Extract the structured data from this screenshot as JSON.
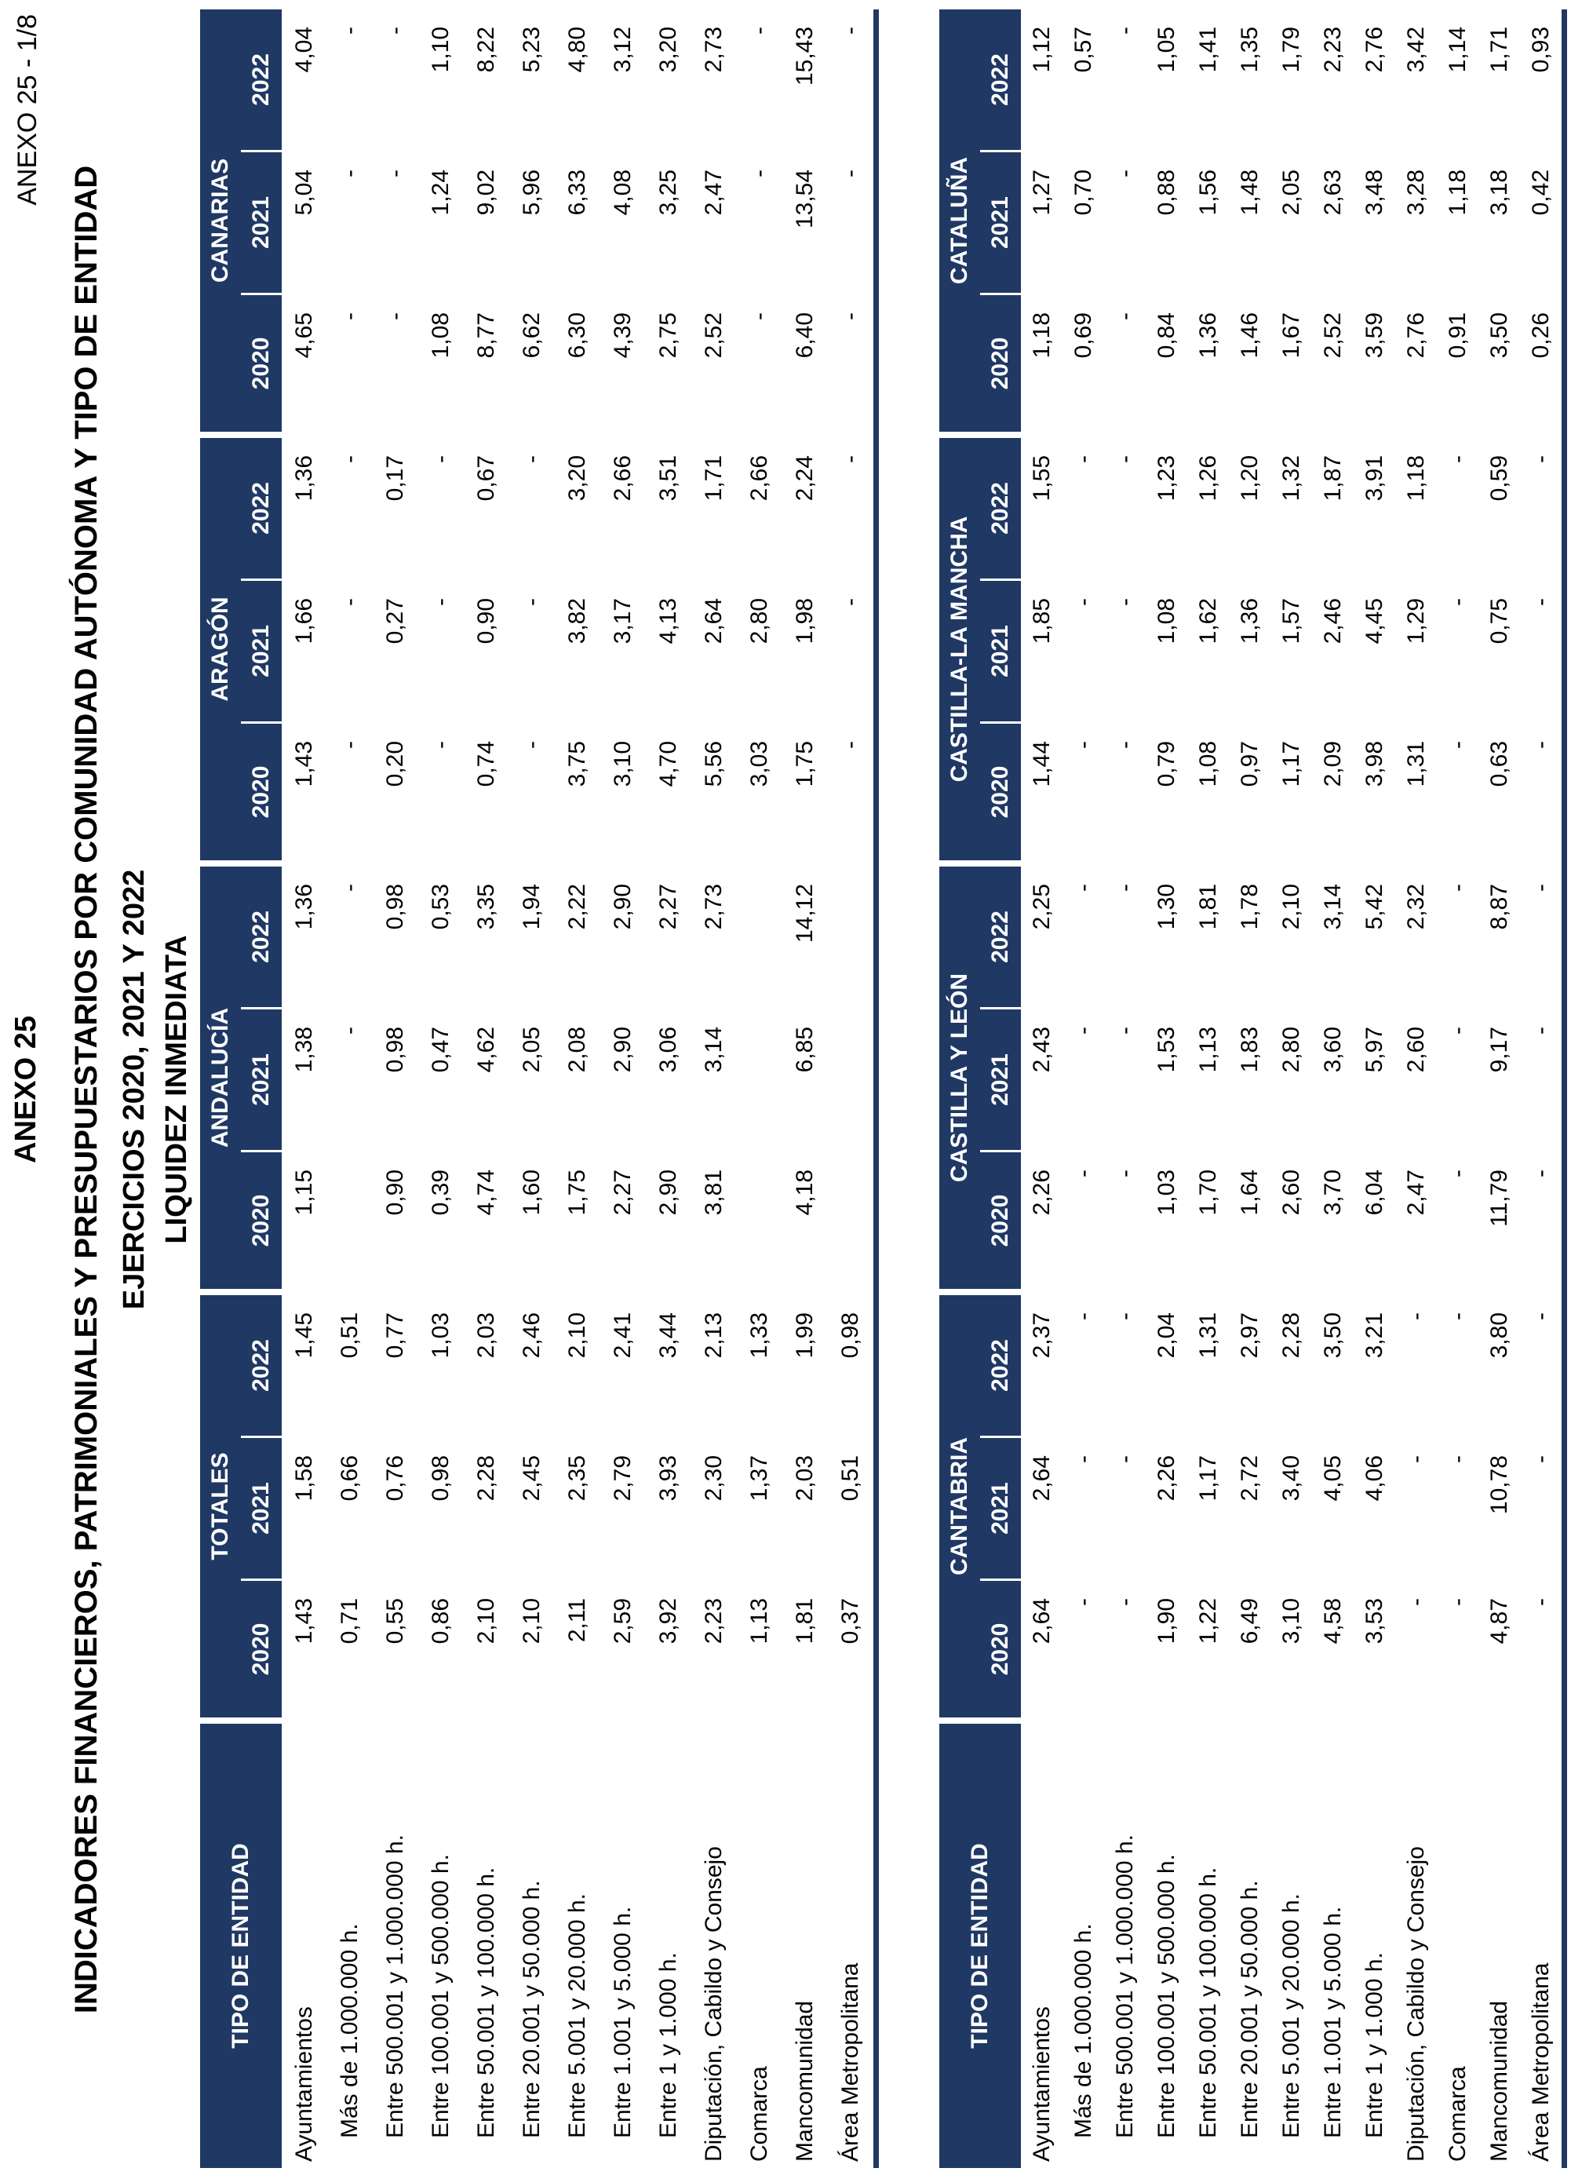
{
  "page": {
    "heading": "ANEXO 25",
    "page_marker": "ANEXO 25 - 1/8",
    "title": "INDICADORES FINANCIEROS, PATRIMONIALES Y PRESUPUESTARIOS POR COMUNIDAD AUTÓNOMA Y TIPO DE ENTIDAD",
    "subtitle": "EJERCICIOS 2020, 2021 Y 2022",
    "indicator": "LIQUIDEZ INMEDIATA"
  },
  "colors": {
    "header_navy": "#1F3864",
    "header_text": "#FFFFFF",
    "body_text": "#000000"
  },
  "table_layout": {
    "entity_header": "TIPO DE ENTIDAD",
    "years": [
      "2020",
      "2021",
      "2022"
    ]
  },
  "entities": [
    {
      "label": "Ayuntamientos",
      "indent": false
    },
    {
      "label": "Más de 1.000.000 h.",
      "indent": true
    },
    {
      "label": "Entre 500.001 y 1.000.000 h.",
      "indent": true
    },
    {
      "label": "Entre 100.001 y 500.000 h.",
      "indent": true
    },
    {
      "label": "Entre 50.001 y 100.000 h.",
      "indent": true
    },
    {
      "label": "Entre 20.001 y 50.000 h.",
      "indent": true
    },
    {
      "label": "Entre 5.001 y 20.000 h.",
      "indent": true
    },
    {
      "label": "Entre 1.001 y 5.000 h.",
      "indent": true
    },
    {
      "label": "Entre 1 y 1.000 h.",
      "indent": true
    },
    {
      "label": "Diputación, Cabildo y Consejo",
      "indent": false
    },
    {
      "label": "Comarca",
      "indent": false
    },
    {
      "label": "Mancomunidad",
      "indent": false
    },
    {
      "label": "Área Metropolitana",
      "indent": false
    }
  ],
  "tables": [
    {
      "groups": [
        {
          "name": "TOTALES",
          "by_year": {
            "2020": [
              "1,43",
              "0,71",
              "0,55",
              "0,86",
              "2,10",
              "2,10",
              "2,11",
              "2,59",
              "3,92",
              "2,23",
              "1,13",
              "1,81",
              "0,37"
            ],
            "2021": [
              "1,58",
              "0,66",
              "0,76",
              "0,98",
              "2,28",
              "2,45",
              "2,35",
              "2,79",
              "3,93",
              "2,30",
              "1,37",
              "2,03",
              "0,51"
            ],
            "2022": [
              "1,45",
              "0,51",
              "0,77",
              "1,03",
              "2,03",
              "2,46",
              "2,10",
              "2,41",
              "3,44",
              "2,13",
              "1,33",
              "1,99",
              "0,98"
            ]
          }
        },
        {
          "name": "ANDALUCÍA",
          "by_year": {
            "2020": [
              "1,15",
              "",
              "0,90",
              "0,39",
              "4,74",
              "1,60",
              "1,75",
              "2,27",
              "2,90",
              "3,81",
              "",
              "4,18",
              ""
            ],
            "2021": [
              "1,38",
              "-",
              "0,98",
              "0,47",
              "4,62",
              "2,05",
              "2,08",
              "2,90",
              "3,06",
              "3,14",
              "",
              "6,85",
              ""
            ],
            "2022": [
              "1,36",
              "-",
              "0,98",
              "0,53",
              "3,35",
              "1,94",
              "2,22",
              "2,90",
              "2,27",
              "2,73",
              "",
              "14,12",
              ""
            ]
          }
        },
        {
          "name": "ARAGÓN",
          "by_year": {
            "2020": [
              "1,43",
              "-",
              "0,20",
              "-",
              "0,74",
              "-",
              "3,75",
              "3,10",
              "4,70",
              "5,56",
              "3,03",
              "1,75",
              "-"
            ],
            "2021": [
              "1,66",
              "-",
              "0,27",
              "-",
              "0,90",
              "-",
              "3,82",
              "3,17",
              "4,13",
              "2,64",
              "2,80",
              "1,98",
              "-"
            ],
            "2022": [
              "1,36",
              "-",
              "0,17",
              "-",
              "0,67",
              "-",
              "3,20",
              "2,66",
              "3,51",
              "1,71",
              "2,66",
              "2,24",
              "-"
            ]
          }
        },
        {
          "name": "CANARIAS",
          "by_year": {
            "2020": [
              "4,65",
              "-",
              "-",
              "1,08",
              "8,77",
              "6,62",
              "6,30",
              "4,39",
              "2,75",
              "2,52",
              "-",
              "6,40",
              "-"
            ],
            "2021": [
              "5,04",
              "-",
              "-",
              "1,24",
              "9,02",
              "5,96",
              "6,33",
              "4,08",
              "3,25",
              "2,47",
              "-",
              "13,54",
              "-"
            ],
            "2022": [
              "4,04",
              "-",
              "-",
              "1,10",
              "8,22",
              "5,23",
              "4,80",
              "3,12",
              "3,20",
              "2,73",
              "-",
              "15,43",
              "-"
            ]
          }
        }
      ]
    },
    {
      "groups": [
        {
          "name": "CANTABRIA",
          "by_year": {
            "2020": [
              "2,64",
              "-",
              "-",
              "1,90",
              "1,22",
              "6,49",
              "3,10",
              "4,58",
              "3,53",
              "-",
              "-",
              "4,87",
              "-"
            ],
            "2021": [
              "2,64",
              "-",
              "-",
              "2,26",
              "1,17",
              "2,72",
              "3,40",
              "4,05",
              "4,06",
              "-",
              "-",
              "10,78",
              "-"
            ],
            "2022": [
              "2,37",
              "-",
              "-",
              "2,04",
              "1,31",
              "2,97",
              "2,28",
              "3,50",
              "3,21",
              "-",
              "-",
              "3,80",
              "-"
            ]
          }
        },
        {
          "name": "CASTILLA Y LEÓN",
          "by_year": {
            "2020": [
              "2,26",
              "-",
              "-",
              "1,03",
              "1,70",
              "1,64",
              "2,60",
              "3,70",
              "6,04",
              "2,47",
              "-",
              "11,79",
              "-"
            ],
            "2021": [
              "2,43",
              "-",
              "-",
              "1,53",
              "1,13",
              "1,83",
              "2,80",
              "3,60",
              "5,97",
              "2,60",
              "-",
              "9,17",
              "-"
            ],
            "2022": [
              "2,25",
              "-",
              "-",
              "1,30",
              "1,81",
              "1,78",
              "2,10",
              "3,14",
              "5,42",
              "2,32",
              "-",
              "8,87",
              "-"
            ]
          }
        },
        {
          "name": "CASTILLA-LA MANCHA",
          "by_year": {
            "2020": [
              "1,44",
              "-",
              "-",
              "0,79",
              "1,08",
              "0,97",
              "1,17",
              "2,09",
              "3,98",
              "1,31",
              "-",
              "0,63",
              "-"
            ],
            "2021": [
              "1,85",
              "-",
              "-",
              "1,08",
              "1,62",
              "1,36",
              "1,57",
              "2,46",
              "4,45",
              "1,29",
              "-",
              "0,75",
              "-"
            ],
            "2022": [
              "1,55",
              "-",
              "-",
              "1,23",
              "1,26",
              "1,20",
              "1,32",
              "1,87",
              "3,91",
              "1,18",
              "-",
              "0,59",
              "-"
            ]
          }
        },
        {
          "name": "CATALUÑA",
          "by_year": {
            "2020": [
              "1,18",
              "0,69",
              "-",
              "0,84",
              "1,36",
              "1,46",
              "1,67",
              "2,52",
              "3,59",
              "2,76",
              "0,91",
              "3,50",
              "0,26"
            ],
            "2021": [
              "1,27",
              "0,70",
              "-",
              "0,88",
              "1,56",
              "1,48",
              "2,05",
              "2,63",
              "3,48",
              "3,28",
              "1,18",
              "3,18",
              "0,42"
            ],
            "2022": [
              "1,12",
              "0,57",
              "-",
              "1,05",
              "1,41",
              "1,35",
              "1,79",
              "2,23",
              "2,76",
              "3,42",
              "1,14",
              "1,71",
              "0,93"
            ]
          }
        }
      ]
    }
  ]
}
